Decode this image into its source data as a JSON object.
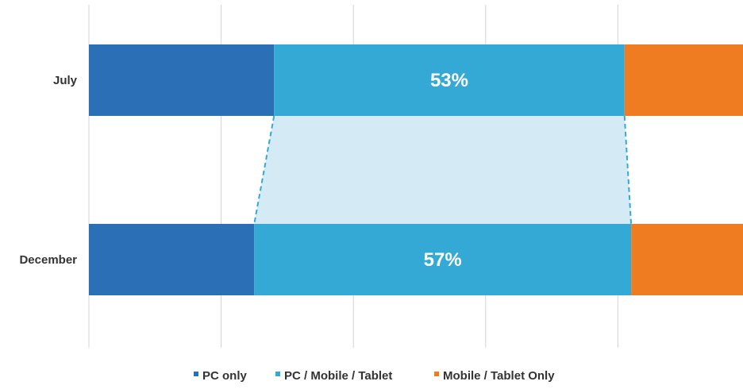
{
  "chart_data": {
    "type": "bar",
    "orientation": "horizontal",
    "stacked": "100%",
    "categories": [
      "July",
      "December"
    ],
    "series": [
      {
        "name": "PC only",
        "values": [
          28,
          25
        ],
        "color": "#2b70b6"
      },
      {
        "name": "PC / Mobile / Tablet",
        "values": [
          53,
          57
        ],
        "color": "#34a9d6"
      },
      {
        "name": "Mobile / Tablet Only",
        "values": [
          19,
          18
        ],
        "color": "#f07c22"
      }
    ],
    "data_labels": [
      {
        "series": "PC / Mobile / Tablet",
        "category": "July",
        "text": "53%"
      },
      {
        "series": "PC / Mobile / Tablet",
        "category": "December",
        "text": "57%"
      }
    ],
    "connector_color": "#d4ebf5",
    "title": "",
    "xlabel": "",
    "ylabel": "",
    "xlim": [
      0,
      100
    ],
    "grid": "vertical",
    "legend_position": "bottom"
  }
}
